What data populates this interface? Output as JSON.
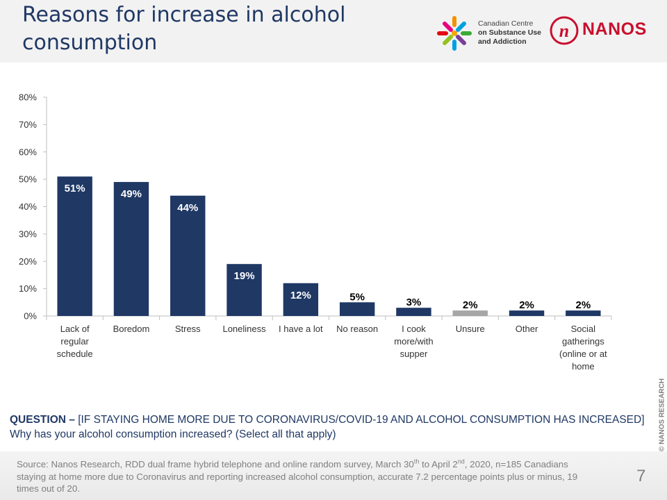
{
  "header": {
    "title": "Reasons for increase in alcohol consumption",
    "ccsa": {
      "lines": [
        "Canadian Centre",
        "on Substance Use",
        "and Addiction"
      ]
    },
    "nanos": {
      "mark": "n",
      "name": "NANOS"
    },
    "colors": {
      "title": "#1f3864",
      "nanos_red": "#c8102e"
    }
  },
  "chart_data": {
    "type": "bar",
    "categories": [
      "Lack of regular schedule",
      "Boredom",
      "Stress",
      "Loneliness",
      "I have a lot",
      "No reason",
      "I cook more/with supper",
      "Unsure",
      "Other",
      "Social gatherings (online or at home"
    ],
    "category_lines": [
      [
        "Lack of",
        "regular",
        "schedule"
      ],
      [
        "Boredom"
      ],
      [
        "Stress"
      ],
      [
        "Loneliness"
      ],
      [
        "I have a lot"
      ],
      [
        "No reason"
      ],
      [
        "I cook",
        "more/with",
        "supper"
      ],
      [
        "Unsure"
      ],
      [
        "Other"
      ],
      [
        "Social",
        "gatherings",
        "(online or at",
        "home"
      ]
    ],
    "values": [
      51,
      49,
      44,
      19,
      12,
      5,
      3,
      2,
      2,
      2
    ],
    "value_labels": [
      "51%",
      "49%",
      "44%",
      "19%",
      "12%",
      "5%",
      "3%",
      "2%",
      "2%",
      "2%"
    ],
    "bar_colors": [
      "#1f3864",
      "#1f3864",
      "#1f3864",
      "#1f3864",
      "#1f3864",
      "#1f3864",
      "#1f3864",
      "#a6a6a6",
      "#1f3864",
      "#1f3864"
    ],
    "ylim": [
      0,
      80
    ],
    "yticks": [
      0,
      10,
      20,
      30,
      40,
      50,
      60,
      70,
      80
    ],
    "ytick_labels": [
      "0%",
      "10%",
      "20%",
      "30%",
      "40%",
      "50%",
      "60%",
      "70%",
      "80%"
    ],
    "title": "",
    "xlabel": "",
    "ylabel": "",
    "grid": false
  },
  "question": {
    "label": "QUESTION –",
    "text": " [IF STAYING HOME MORE DUE TO CORONAVIRUS/COVID-19 AND ALCOHOL CONSUMPTION HAS INCREASED] Why has your alcohol consumption increased? (Select all that apply)"
  },
  "footer": {
    "source_a": "Source: Nanos Research, RDD dual frame hybrid  telephone and online random survey, March 30",
    "sup_a": "th",
    "source_b": " to April 2",
    "sup_b": "nd",
    "source_c": ", 2020, n=185 Canadians staying at home more due to Coronavirus and reporting increased alcohol consumption, accurate 7.2 percentage points plus or minus, 19 times out of 20.",
    "page_number": "7",
    "copyright": "© NANOS RESEARCH"
  }
}
